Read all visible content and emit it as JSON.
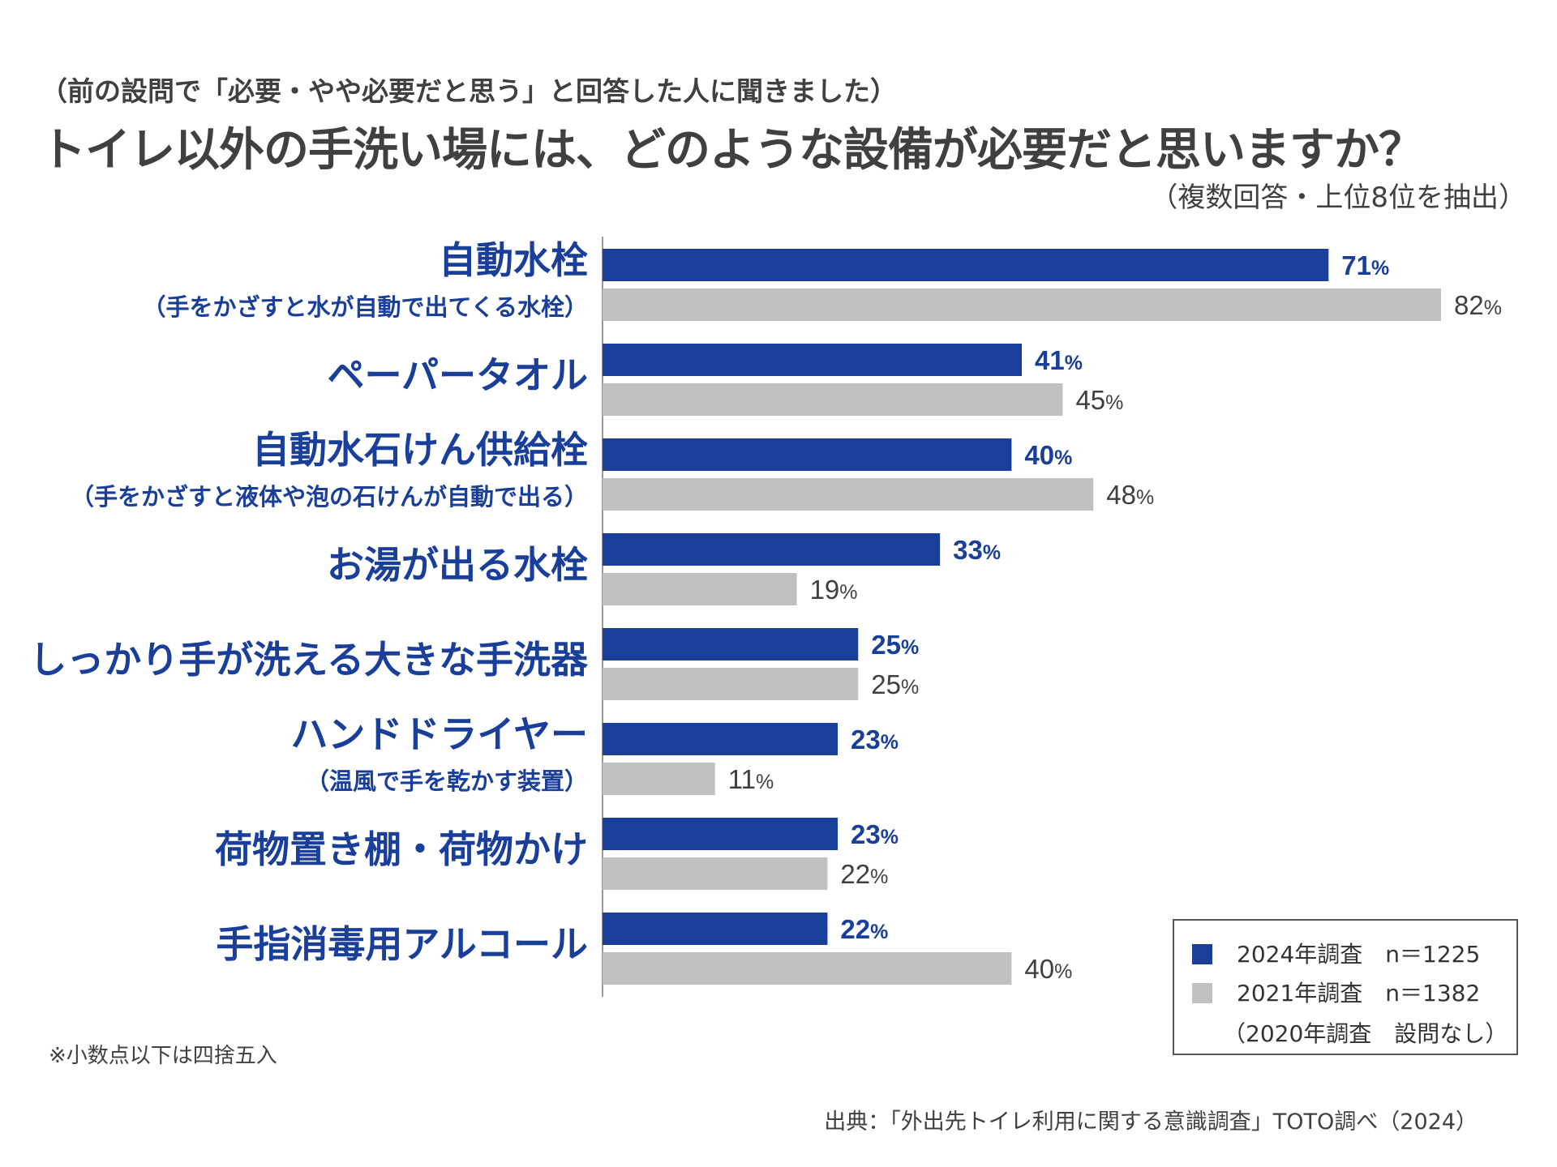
{
  "header": {
    "subtitle": "（前の設問で「必要・やや必要だと思う」と回答した人に聞きました）",
    "title": "トイレ以外の手洗い場には、どのような設備が必要だと思いますか？",
    "note": "（複数回答・上位8位を抽出）"
  },
  "colors": {
    "series_2024": "#1a3f9a",
    "series_2021": "#c0c0c0",
    "label_2024": "#1a3f9a",
    "label_2021": "#404040"
  },
  "chart_data": {
    "type": "bar",
    "orientation": "horizontal",
    "unit": "%",
    "categories": [
      {
        "label": "自動水栓",
        "sub": "（手をかざすと水が自動で出てくる水栓）"
      },
      {
        "label": "ペーパータオル",
        "sub": ""
      },
      {
        "label": "自動水石けん供給栓",
        "sub": "（手をかざすと液体や泡の石けんが自動で出る）"
      },
      {
        "label": "お湯が出る水栓",
        "sub": ""
      },
      {
        "label": "しっかり手が洗える大きな手洗器",
        "sub": ""
      },
      {
        "label": "ハンドドライヤー",
        "sub": "（温風で手を乾かす装置）"
      },
      {
        "label": "荷物置き棚・荷物かけ",
        "sub": ""
      },
      {
        "label": "手指消毒用アルコール",
        "sub": ""
      }
    ],
    "series": [
      {
        "name": "2024年調査　n＝1225",
        "values": [
          71,
          41,
          40,
          33,
          25,
          23,
          23,
          22
        ]
      },
      {
        "name": "2021年調査　n＝1382",
        "values": [
          82,
          45,
          48,
          19,
          25,
          11,
          22,
          40
        ]
      }
    ],
    "xlim": [
      0,
      100
    ],
    "grid": false,
    "legend_position": "bottom-right"
  },
  "legend": {
    "item_2024": "2024年調査　n＝1225",
    "item_2021": "2021年調査　n＝1382",
    "note": "（2020年調査　設問なし）"
  },
  "footnote": "※小数点以下は四捨五入",
  "source": "出典：「外出先トイレ利用に関する意識調査」TOTO調べ（2024）"
}
